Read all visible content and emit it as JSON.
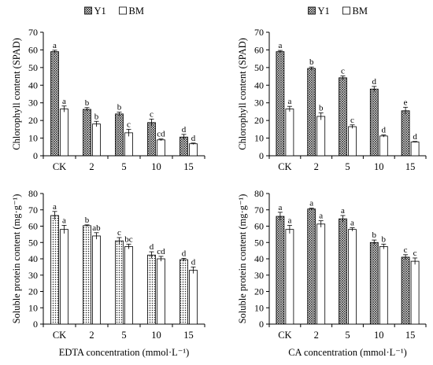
{
  "chart_data": [
    {
      "type": "bar",
      "ylabel": "Chlorophyll content (SPAD)",
      "xlabel": "",
      "categories": [
        "CK",
        "2",
        "5",
        "10",
        "15"
      ],
      "ylim": [
        0,
        70
      ],
      "yticks": [
        0,
        10,
        20,
        30,
        40,
        50,
        60,
        70
      ],
      "legend": "top",
      "pattern": "crosshatch",
      "series": [
        {
          "name": "Y1",
          "values": [
            59,
            26.3,
            23.7,
            18.8,
            10.6
          ],
          "errors": [
            0.8,
            1.0,
            1.0,
            2.0,
            1.5
          ],
          "labels": [
            "a",
            "b",
            "b",
            "c",
            "d"
          ]
        },
        {
          "name": "BM",
          "values": [
            26.5,
            18.0,
            13.0,
            9.0,
            6.8
          ],
          "errors": [
            1.7,
            1.5,
            2.0,
            0.5,
            0.4
          ],
          "labels": [
            "a",
            "b",
            "c",
            "cd",
            "d"
          ]
        }
      ]
    },
    {
      "type": "bar",
      "ylabel": "Chlorophyll content (SPAD)",
      "xlabel": "",
      "categories": [
        "CK",
        "2",
        "5",
        "10",
        "15"
      ],
      "ylim": [
        0,
        70
      ],
      "yticks": [
        0,
        10,
        20,
        30,
        40,
        50,
        60,
        70
      ],
      "legend": "top",
      "pattern": "crosshatch",
      "series": [
        {
          "name": "Y1",
          "values": [
            59,
            49.5,
            44.2,
            37.8,
            25.5
          ],
          "errors": [
            0.7,
            0.8,
            1.0,
            1.5,
            2.0
          ],
          "labels": [
            "a",
            "b",
            "c",
            "d",
            "e"
          ]
        },
        {
          "name": "BM",
          "values": [
            26.5,
            22.3,
            16.5,
            11.2,
            7.8
          ],
          "errors": [
            1.5,
            2.0,
            1.0,
            0.6,
            0.3
          ],
          "labels": [
            "a",
            "b",
            "c",
            "d",
            "d"
          ]
        }
      ]
    },
    {
      "type": "bar",
      "ylabel": "Soluble protein content (mg·g⁻¹)",
      "xlabel": "EDTA concentration (mmol·L⁻¹)",
      "categories": [
        "CK",
        "2",
        "5",
        "10",
        "15"
      ],
      "ylim": [
        0,
        80
      ],
      "yticks": [
        0,
        10,
        20,
        30,
        40,
        50,
        60,
        70,
        80
      ],
      "pattern": "dots",
      "series": [
        {
          "name": "Y1",
          "values": [
            66.5,
            60.3,
            51.0,
            42.3,
            39.5
          ],
          "errors": [
            2.5,
            0.5,
            2.0,
            2.0,
            0.8
          ],
          "labels": [
            "a",
            "b",
            "c",
            "d",
            "d"
          ]
        },
        {
          "name": "BM",
          "values": [
            58.0,
            54.0,
            47.5,
            40.0,
            33.0
          ],
          "errors": [
            2.5,
            2.0,
            1.5,
            1.5,
            2.0
          ],
          "labels": [
            "a",
            "ab",
            "bc",
            "cd",
            "d"
          ]
        }
      ]
    },
    {
      "type": "bar",
      "ylabel": "Soluble protein content (mg·g⁻¹)",
      "xlabel": "CA concentration (mmol·L⁻¹)",
      "categories": [
        "CK",
        "2",
        "5",
        "10",
        "15"
      ],
      "ylim": [
        0,
        80
      ],
      "yticks": [
        0,
        10,
        20,
        30,
        40,
        50,
        60,
        70,
        80
      ],
      "pattern": "crosshatch",
      "series": [
        {
          "name": "Y1",
          "values": [
            66.0,
            70.5,
            64.5,
            50.0,
            41.0
          ],
          "errors": [
            2.5,
            0.5,
            2.0,
            1.5,
            1.5
          ],
          "labels": [
            "a",
            "a",
            "a",
            "b",
            "c"
          ]
        },
        {
          "name": "BM",
          "values": [
            58.0,
            61.3,
            58.0,
            47.5,
            38.5
          ],
          "errors": [
            2.5,
            2.0,
            1.0,
            1.5,
            2.0
          ],
          "labels": [
            "a",
            "a",
            "a",
            "b",
            "c"
          ]
        }
      ]
    }
  ]
}
